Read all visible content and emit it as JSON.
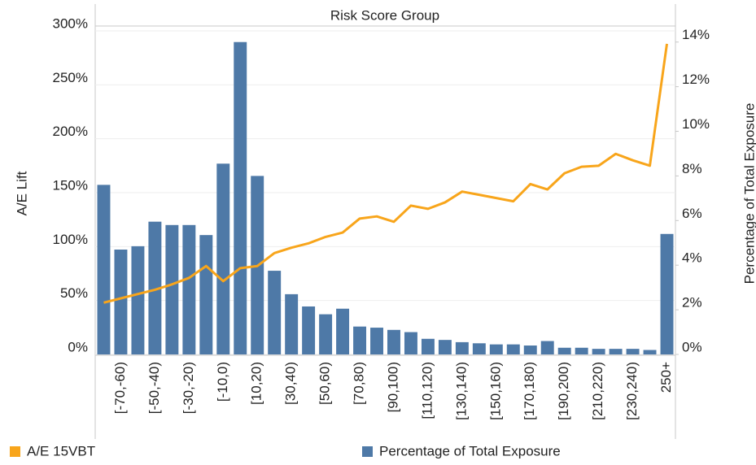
{
  "chart_data": {
    "type": "combo",
    "x_label": "Risk Score Group",
    "y_label": "A/E Lift",
    "y2_label": "Percentage of Total Exposure",
    "categories": [
      null,
      "[-70,-60)",
      null,
      "[-50,-40)",
      null,
      "[-30,-20)",
      null,
      "[-10,0)",
      null,
      "[10,20)",
      null,
      "[30,40)",
      null,
      "[50,60)",
      null,
      "[70,80)",
      null,
      "[90,100)",
      null,
      "[110,120)",
      null,
      "[130,140)",
      null,
      "[150,160)",
      null,
      "[170,180)",
      null,
      "[190,200)",
      null,
      "[210,220)",
      null,
      "[230,240)",
      null,
      "250+"
    ],
    "series": [
      {
        "name": "A/E 15VBT",
        "type": "line",
        "axis": "y",
        "color": "#f8a51b",
        "values": [
          48,
          52,
          56,
          60,
          65,
          71,
          82,
          68,
          80,
          82,
          94,
          99,
          103,
          109,
          113,
          126,
          128,
          123,
          138,
          135,
          141,
          151,
          148,
          145,
          142,
          158,
          153,
          168,
          174,
          175,
          186,
          180,
          175,
          288
        ]
      },
      {
        "name": "Percentage of Total Exposure",
        "type": "bar",
        "axis": "y2",
        "color": "#4e79a7",
        "values": [
          7.6,
          4.7,
          4.85,
          5.95,
          5.8,
          5.8,
          5.35,
          8.55,
          14.0,
          8.0,
          3.75,
          2.7,
          2.15,
          1.8,
          2.05,
          1.25,
          1.2,
          1.1,
          1.0,
          0.7,
          0.65,
          0.55,
          0.5,
          0.45,
          0.45,
          0.4,
          0.6,
          0.3,
          0.3,
          0.25,
          0.25,
          0.25,
          0.2,
          5.4
        ]
      }
    ],
    "ylim": [
      0,
      300
    ],
    "yticks": [
      {
        "value": 0,
        "label": "0%"
      },
      {
        "value": 50,
        "label": "50%"
      },
      {
        "value": 100,
        "label": "100%"
      },
      {
        "value": 150,
        "label": "150%"
      },
      {
        "value": 200,
        "label": "200%"
      },
      {
        "value": 250,
        "label": "250%"
      },
      {
        "value": 300,
        "label": "300%"
      }
    ],
    "y2lim": [
      0,
      14.5
    ],
    "y2ticks": [
      {
        "value": 0,
        "label": "0%"
      },
      {
        "value": 2,
        "label": "2%"
      },
      {
        "value": 4,
        "label": "4%"
      },
      {
        "value": 6,
        "label": "6%"
      },
      {
        "value": 8,
        "label": "8%"
      },
      {
        "value": 10,
        "label": "10%"
      },
      {
        "value": 12,
        "label": "12%"
      },
      {
        "value": 14,
        "label": "14%"
      }
    ],
    "grid": true,
    "legend": "bottom"
  }
}
